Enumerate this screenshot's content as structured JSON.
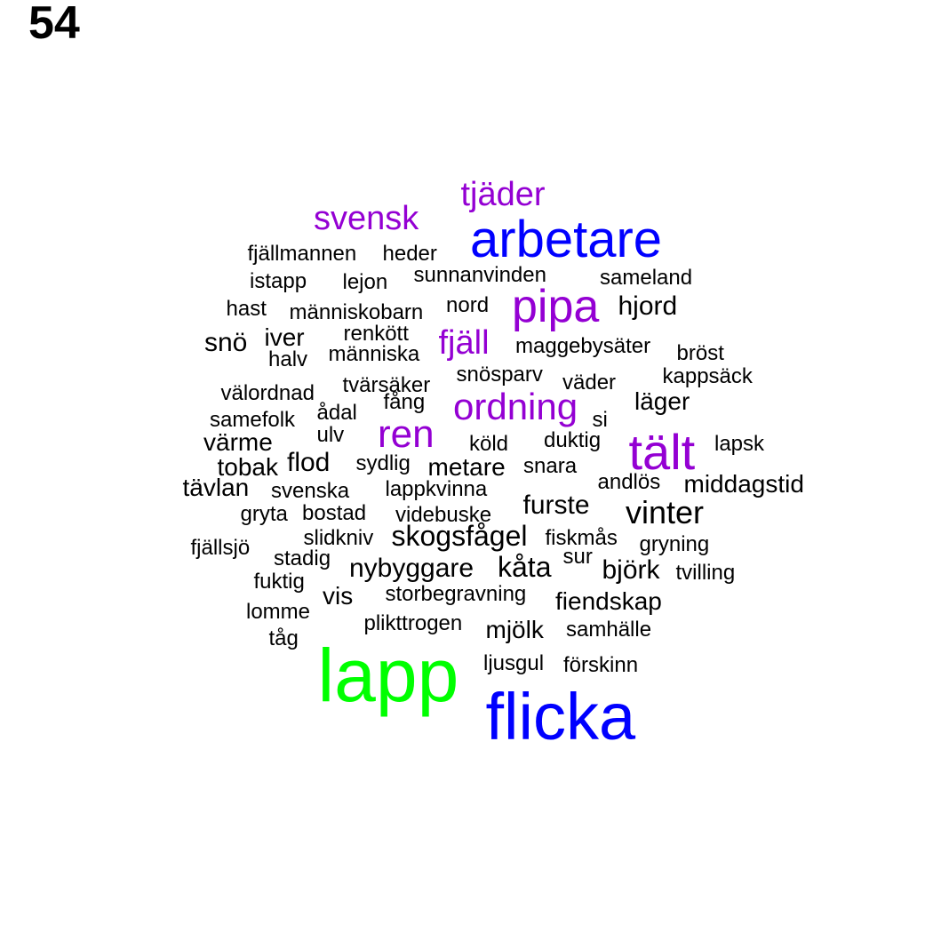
{
  "label": "54",
  "colors": {
    "black": "#000000",
    "purple": "#9400D3",
    "blue": "#0000FF",
    "green": "#00FF00"
  },
  "words": [
    {
      "text": "tjäder",
      "color": "purple"
    },
    {
      "text": "svensk",
      "color": "purple"
    },
    {
      "text": "arbetare",
      "color": "blue"
    },
    {
      "text": "fjällmannen",
      "color": "black"
    },
    {
      "text": "heder",
      "color": "black"
    },
    {
      "text": "istapp",
      "color": "black"
    },
    {
      "text": "lejon",
      "color": "black"
    },
    {
      "text": "sunnanvinden",
      "color": "black"
    },
    {
      "text": "sameland",
      "color": "black"
    },
    {
      "text": "hast",
      "color": "black"
    },
    {
      "text": "människobarn",
      "color": "black"
    },
    {
      "text": "nord",
      "color": "black"
    },
    {
      "text": "pipa",
      "color": "purple"
    },
    {
      "text": "hjord",
      "color": "black"
    },
    {
      "text": "snö",
      "color": "black"
    },
    {
      "text": "iver",
      "color": "black"
    },
    {
      "text": "renkött",
      "color": "black"
    },
    {
      "text": "fjäll",
      "color": "purple"
    },
    {
      "text": "maggebysäter",
      "color": "black"
    },
    {
      "text": "bröst",
      "color": "black"
    },
    {
      "text": "halv",
      "color": "black"
    },
    {
      "text": "människa",
      "color": "black"
    },
    {
      "text": "snösparv",
      "color": "black"
    },
    {
      "text": "kappsäck",
      "color": "black"
    },
    {
      "text": "välordnad",
      "color": "black"
    },
    {
      "text": "tvärsäker",
      "color": "black"
    },
    {
      "text": "väder",
      "color": "black"
    },
    {
      "text": "fång",
      "color": "black"
    },
    {
      "text": "ordning",
      "color": "purple"
    },
    {
      "text": "läger",
      "color": "black"
    },
    {
      "text": "samefolk",
      "color": "black"
    },
    {
      "text": "ådal",
      "color": "black"
    },
    {
      "text": "si",
      "color": "black"
    },
    {
      "text": "värme",
      "color": "black"
    },
    {
      "text": "ulv",
      "color": "black"
    },
    {
      "text": "ren",
      "color": "purple"
    },
    {
      "text": "köld",
      "color": "black"
    },
    {
      "text": "duktig",
      "color": "black"
    },
    {
      "text": "tält",
      "color": "purple"
    },
    {
      "text": "lapsk",
      "color": "black"
    },
    {
      "text": "tobak",
      "color": "black"
    },
    {
      "text": "flod",
      "color": "black"
    },
    {
      "text": "sydlig",
      "color": "black"
    },
    {
      "text": "metare",
      "color": "black"
    },
    {
      "text": "snara",
      "color": "black"
    },
    {
      "text": "andlös",
      "color": "black"
    },
    {
      "text": "middagstid",
      "color": "black"
    },
    {
      "text": "tävlan",
      "color": "black"
    },
    {
      "text": "svenska",
      "color": "black"
    },
    {
      "text": "lappkvinna",
      "color": "black"
    },
    {
      "text": "furste",
      "color": "black"
    },
    {
      "text": "vinter",
      "color": "black"
    },
    {
      "text": "gryta",
      "color": "black"
    },
    {
      "text": "bostad",
      "color": "black"
    },
    {
      "text": "videbuske",
      "color": "black"
    },
    {
      "text": "slidkniv",
      "color": "black"
    },
    {
      "text": "skogsfågel",
      "color": "black"
    },
    {
      "text": "fiskmås",
      "color": "black"
    },
    {
      "text": "gryning",
      "color": "black"
    },
    {
      "text": "fjällsjö",
      "color": "black"
    },
    {
      "text": "stadig",
      "color": "black"
    },
    {
      "text": "nybyggare",
      "color": "black"
    },
    {
      "text": "kåta",
      "color": "black"
    },
    {
      "text": "sur",
      "color": "black"
    },
    {
      "text": "björk",
      "color": "black"
    },
    {
      "text": "tvilling",
      "color": "black"
    },
    {
      "text": "fuktig",
      "color": "black"
    },
    {
      "text": "vis",
      "color": "black"
    },
    {
      "text": "storbegravning",
      "color": "black"
    },
    {
      "text": "fiendskap",
      "color": "black"
    },
    {
      "text": "lomme",
      "color": "black"
    },
    {
      "text": "plikttrogen",
      "color": "black"
    },
    {
      "text": "mjölk",
      "color": "black"
    },
    {
      "text": "samhälle",
      "color": "black"
    },
    {
      "text": "tåg",
      "color": "black"
    },
    {
      "text": "lapp",
      "color": "green"
    },
    {
      "text": "ljusgul",
      "color": "black"
    },
    {
      "text": "förskinn",
      "color": "black"
    },
    {
      "text": "flicka",
      "color": "blue"
    }
  ]
}
